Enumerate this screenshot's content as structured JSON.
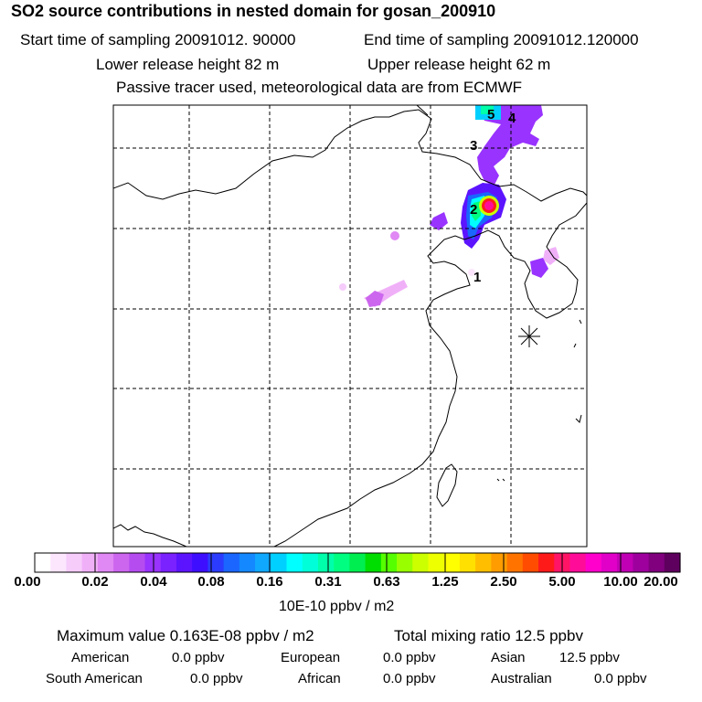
{
  "header": {
    "title": "SO2 source contributions in nested domain for gosan_200910",
    "start_time": "Start time of sampling 20091012. 90000",
    "end_time": "End time of sampling 20091012.120000",
    "lower_release": "Lower release height   82 m",
    "upper_release": "Upper release height   62 m",
    "note": "Passive tracer used, meteorological data are from ECMWF"
  },
  "map": {
    "source_labels": [
      "1",
      "2",
      "3",
      "4",
      "5"
    ],
    "receptor_marker": "gosan-asterisk"
  },
  "colorbar": {
    "tick_labels": [
      "0.00",
      "0.02",
      "0.04",
      "0.08",
      "0.16",
      "0.31",
      "0.63",
      "1.25",
      "2.50",
      "5.00",
      "10.00",
      "20.00"
    ],
    "colors": [
      "#ffffff",
      "#fce6fd",
      "#f6ccfb",
      "#f0b0f8",
      "#e088f4",
      "#cc66ee",
      "#b44cf0",
      "#9933ff",
      "#7a22ff",
      "#5c14ff",
      "#3d0eff",
      "#2b3cff",
      "#1a66ff",
      "#1488ff",
      "#10a8ff",
      "#00d0ff",
      "#00ffff",
      "#00ffd8",
      "#00ffaa",
      "#00ff80",
      "#00ee50",
      "#00dd00",
      "#55ff00",
      "#99ff00",
      "#ccff00",
      "#eeff00",
      "#ffff00",
      "#ffe000",
      "#ffbe00",
      "#ff9c00",
      "#ff7400",
      "#ff4c00",
      "#ff1a1a",
      "#ff1466",
      "#ff0d99",
      "#ff00cc",
      "#e000c8",
      "#c000b4",
      "#9e009e",
      "#80007e",
      "#5e005e"
    ],
    "unit": "10E-10 ppbv / m2"
  },
  "stats": {
    "max_value": "Maximum value  0.163E-08 ppbv / m2",
    "total_mixing": "Total mixing ratio       12.5 ppbv",
    "regions": [
      {
        "name": "American",
        "value": "0.0 ppbv"
      },
      {
        "name": "European",
        "value": "0.0 ppbv"
      },
      {
        "name": "Asian",
        "value": "12.5 ppbv"
      },
      {
        "name": "South American",
        "value": "0.0 ppbv"
      },
      {
        "name": "African",
        "value": "0.0 ppbv"
      },
      {
        "name": "Australian",
        "value": "0.0 ppbv"
      }
    ]
  }
}
